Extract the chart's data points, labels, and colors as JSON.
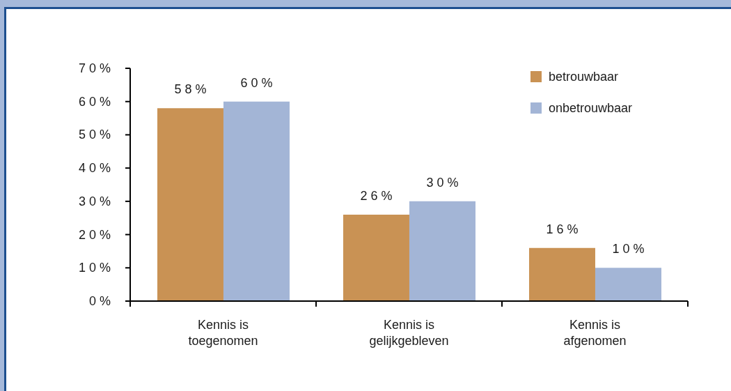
{
  "chart_data": {
    "type": "bar",
    "categories": [
      "Kennis is toegenomen",
      "Kennis is gelijkgebleven",
      "Kennis is afgenomen"
    ],
    "series": [
      {
        "name": "betrouwbaar",
        "color": "#c99254",
        "values": [
          58,
          26,
          16
        ],
        "value_labels": [
          "58%",
          "26%",
          "16%"
        ]
      },
      {
        "name": "onbetrouwbaar",
        "color": "#a3b5d6",
        "values": [
          60,
          30,
          10
        ],
        "value_labels": [
          "60%",
          "30%",
          "10%"
        ]
      }
    ],
    "ylim": [
      0,
      70
    ],
    "yticks": [
      {
        "value": 0,
        "label": "0%"
      },
      {
        "value": 10,
        "label": "10%"
      },
      {
        "value": 20,
        "label": "20%"
      },
      {
        "value": 30,
        "label": "30%"
      },
      {
        "value": 40,
        "label": "40%"
      },
      {
        "value": 50,
        "label": "50%"
      },
      {
        "value": 60,
        "label": "60%"
      },
      {
        "value": 70,
        "label": "70%"
      }
    ],
    "legend": "top right"
  }
}
